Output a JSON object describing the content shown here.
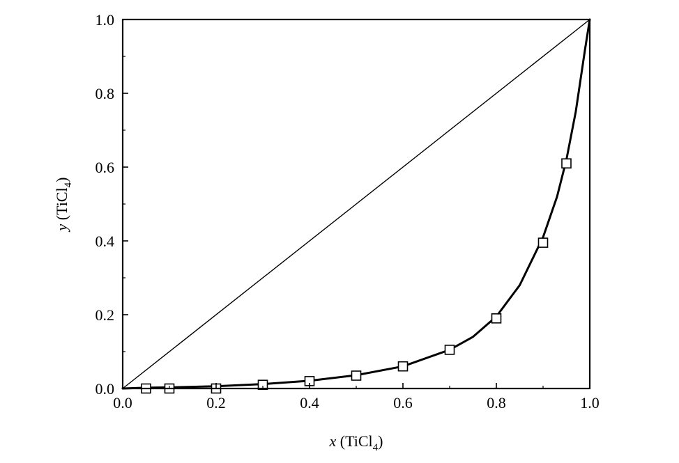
{
  "chart_data": {
    "type": "scatter",
    "title": "",
    "xlabel": {
      "var": "x",
      "species": "TiCl",
      "subscript": "4"
    },
    "ylabel": {
      "var": "y",
      "species": "TiCl",
      "subscript": "4"
    },
    "xlim": [
      0.0,
      1.0
    ],
    "ylim": [
      0.0,
      1.0
    ],
    "grid": false,
    "x_ticks": [
      "0.0",
      "0.2",
      "0.4",
      "0.6",
      "0.8",
      "1.0"
    ],
    "y_ticks": [
      "0.0",
      "0.2",
      "0.4",
      "0.6",
      "0.8",
      "1.0"
    ],
    "series": [
      {
        "kind": "scatter",
        "marker": "open-square",
        "x": [
          0.05,
          0.1,
          0.2,
          0.3,
          0.4,
          0.5,
          0.6,
          0.7,
          0.8,
          0.9,
          0.95
        ],
        "y": [
          0.0,
          0.0,
          0.0,
          0.01,
          0.02,
          0.035,
          0.06,
          0.105,
          0.19,
          0.395,
          0.61
        ]
      },
      {
        "kind": "line",
        "style": "thick",
        "x": [
          0.0,
          0.05,
          0.1,
          0.2,
          0.3,
          0.4,
          0.5,
          0.6,
          0.7,
          0.75,
          0.8,
          0.85,
          0.9,
          0.93,
          0.95,
          0.97,
          0.99,
          1.0
        ],
        "y": [
          0.0,
          0.002,
          0.003,
          0.006,
          0.012,
          0.021,
          0.036,
          0.06,
          0.105,
          0.14,
          0.195,
          0.28,
          0.41,
          0.52,
          0.62,
          0.75,
          0.92,
          1.0
        ]
      },
      {
        "kind": "line",
        "style": "thin",
        "x": [
          0.0,
          1.0
        ],
        "y": [
          0.0,
          1.0
        ]
      }
    ]
  }
}
